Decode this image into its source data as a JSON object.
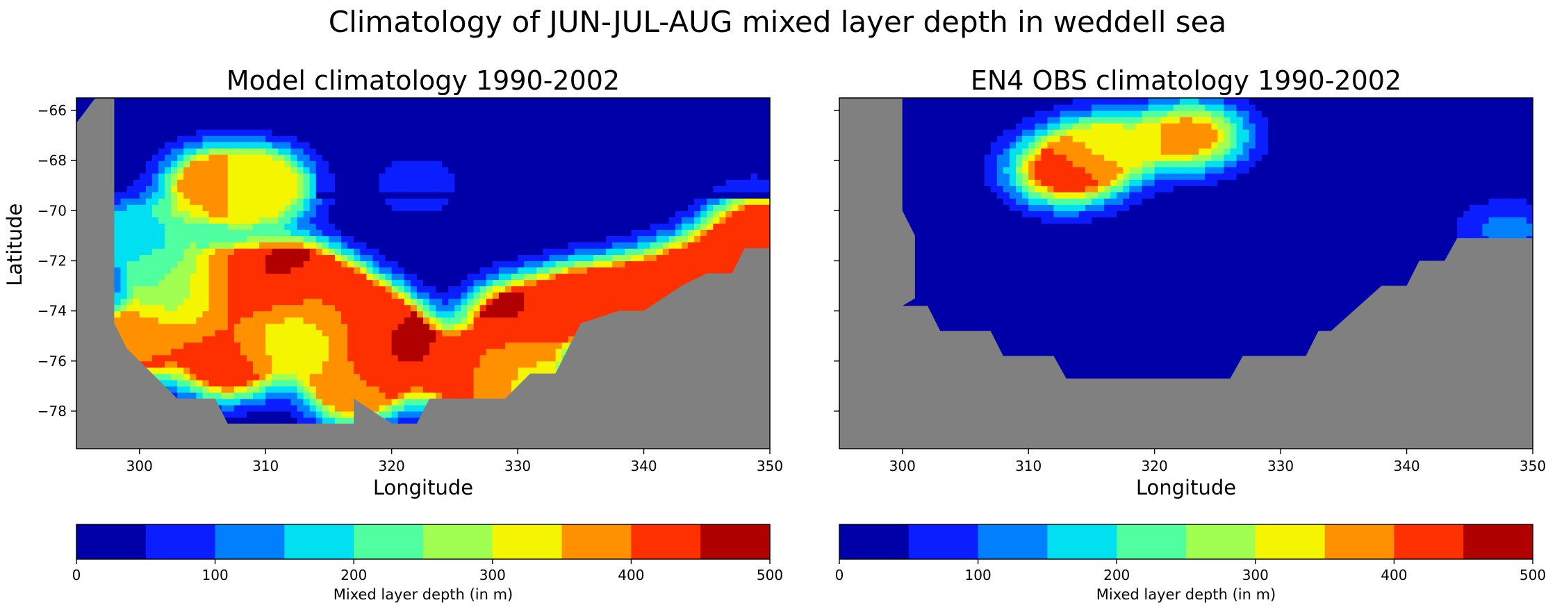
{
  "figure": {
    "title": "Climatology of JUN-JUL-AUG mixed layer depth in weddell sea"
  },
  "levels": [
    0,
    50,
    100,
    150,
    200,
    250,
    300,
    350,
    400,
    450,
    500
  ],
  "colors": [
    "#0000a8",
    "#0a1eff",
    "#0080ff",
    "#00e0f0",
    "#50ffa0",
    "#a0ff50",
    "#f5f500",
    "#ff9000",
    "#ff3000",
    "#b00000"
  ],
  "land_color": "#808080",
  "chart_data": [
    {
      "type": "heatmap",
      "title": "Model climatology 1990-2002",
      "xlabel": "Longitude",
      "ylabel": "Latitude",
      "xlim": [
        295,
        350
      ],
      "ylim": [
        -79.5,
        -65.5
      ],
      "xticks": [
        300,
        310,
        320,
        330,
        340,
        350
      ],
      "yticks": [
        -66,
        -68,
        -70,
        -72,
        -74,
        -76,
        -78
      ],
      "colorbar_label": "Mixed layer depth (in m)",
      "colorbar_ticks": [
        0,
        100,
        200,
        300,
        400,
        500
      ],
      "grid": false,
      "land_mask": [
        {
          "lon": 295,
          "lat": -65.5,
          "note": "land"
        }
      ],
      "fields": {
        "land_boundary": [
          [
            295,
            -79.5
          ],
          [
            295,
            -66.5
          ],
          [
            296.5,
            -65.5
          ],
          [
            298,
            -65.5
          ],
          [
            298,
            -74.5
          ],
          [
            299,
            -75.5
          ],
          [
            301,
            -76.5
          ],
          [
            303,
            -77.5
          ],
          [
            306,
            -77.5
          ],
          [
            307,
            -78.5
          ],
          [
            315,
            -78.5
          ],
          [
            317,
            -78.5
          ],
          [
            317,
            -77.5
          ],
          [
            320,
            -78.5
          ],
          [
            322,
            -78.5
          ],
          [
            323,
            -77.5
          ],
          [
            329,
            -77.5
          ],
          [
            331,
            -76.5
          ],
          [
            333,
            -76.5
          ],
          [
            335,
            -74.5
          ],
          [
            338,
            -74
          ],
          [
            340,
            -74
          ],
          [
            343,
            -73
          ],
          [
            345,
            -72.5
          ],
          [
            347,
            -72.5
          ],
          [
            348,
            -71.5
          ],
          [
            350,
            -71.5
          ],
          [
            350,
            -79.5
          ]
        ],
        "centers": [
          {
            "lon": 322,
            "lat": -69,
            "v": 60
          },
          {
            "lon": 310,
            "lat": -69,
            "v": 300
          },
          {
            "lon": 306,
            "lat": -69,
            "v": 380
          },
          {
            "lon": 300,
            "lat": -71,
            "v": 180
          },
          {
            "lon": 303,
            "lat": -73,
            "v": 240
          },
          {
            "lon": 307.5,
            "lat": -73,
            "v": 440
          },
          {
            "lon": 312,
            "lat": -72.7,
            "v": 470
          },
          {
            "lon": 315,
            "lat": -73.5,
            "v": 400
          },
          {
            "lon": 318,
            "lat": -74.5,
            "v": 440
          },
          {
            "lon": 320,
            "lat": -75.5,
            "v": 470
          },
          {
            "lon": 307,
            "lat": -76,
            "v": 420
          },
          {
            "lon": 313,
            "lat": -75,
            "v": 270
          },
          {
            "lon": 317,
            "lat": -77,
            "v": 380
          },
          {
            "lon": 326,
            "lat": -76.5,
            "v": 430
          },
          {
            "lon": 330,
            "lat": -76.5,
            "v": 320
          },
          {
            "lon": 330,
            "lat": -74.3,
            "v": 460
          },
          {
            "lon": 335,
            "lat": -73.6,
            "v": 420
          },
          {
            "lon": 340,
            "lat": -73.2,
            "v": 400
          },
          {
            "lon": 345,
            "lat": -72.4,
            "v": 420
          },
          {
            "lon": 349,
            "lat": -70.8,
            "v": 400
          },
          {
            "lon": 300,
            "lat": -75.2,
            "v": 400
          }
        ]
      }
    },
    {
      "type": "heatmap",
      "title": "EN4 OBS climatology 1990-2002",
      "xlabel": "Longitude",
      "ylabel": "",
      "xlim": [
        295,
        350
      ],
      "ylim": [
        -79.5,
        -65.5
      ],
      "xticks": [
        300,
        310,
        320,
        330,
        340,
        350
      ],
      "yticks": [
        -66,
        -68,
        -70,
        -72,
        -74,
        -76,
        -78
      ],
      "colorbar_label": "Mixed layer depth (in m)",
      "colorbar_ticks": [
        0,
        100,
        200,
        300,
        400,
        500
      ],
      "grid": false,
      "fields": {
        "land_boundary": [
          [
            295,
            -79.5
          ],
          [
            295,
            -65.5
          ],
          [
            300,
            -65.5
          ],
          [
            300,
            -70
          ],
          [
            301,
            -71
          ],
          [
            301,
            -73.5
          ],
          [
            300,
            -73.8
          ],
          [
            302,
            -73.8
          ],
          [
            303,
            -74.8
          ],
          [
            307,
            -74.8
          ],
          [
            308,
            -75.8
          ],
          [
            312,
            -75.8
          ],
          [
            313,
            -76.7
          ],
          [
            326,
            -76.7
          ],
          [
            327,
            -75.8
          ],
          [
            332,
            -75.8
          ],
          [
            333,
            -74.8
          ],
          [
            334,
            -74.8
          ],
          [
            336,
            -73.9
          ],
          [
            338,
            -73
          ],
          [
            340,
            -73
          ],
          [
            341,
            -72
          ],
          [
            343,
            -72
          ],
          [
            344,
            -71.1
          ],
          [
            350,
            -71.1
          ],
          [
            350,
            -79.5
          ]
        ],
        "centers": [
          {
            "lon": 313,
            "lat": -68.4,
            "v": 470
          },
          {
            "lon": 323,
            "lat": -67,
            "v": 380
          },
          {
            "lon": 316,
            "lat": -67.4,
            "v": 280
          },
          {
            "lon": 348,
            "lat": -70.8,
            "v": 110
          }
        ]
      }
    }
  ]
}
